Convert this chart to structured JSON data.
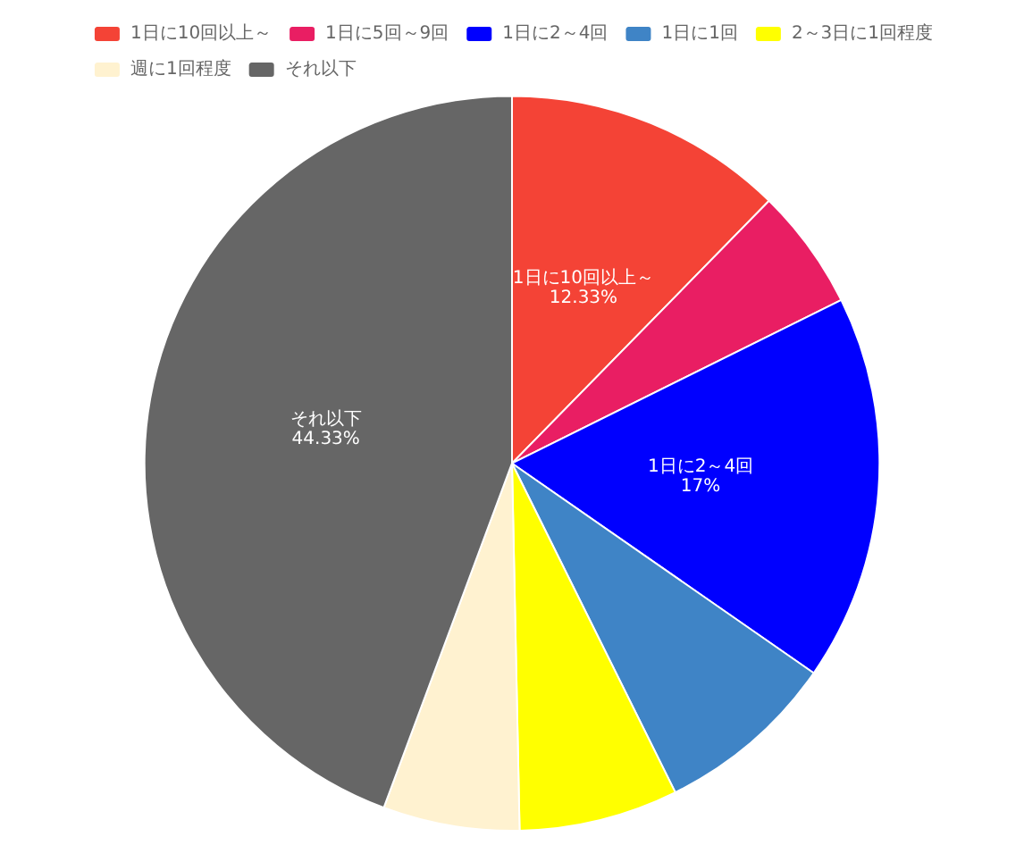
{
  "chart_data": {
    "type": "pie",
    "categories": [
      "1日に10回以上～",
      "1日に5回～9回",
      "1日に2～4回",
      "1日に1回",
      "2～3日に1回程度",
      "週に1回程度",
      "それ以下"
    ],
    "values": [
      12.33,
      5.34,
      17,
      8,
      7,
      6,
      44.33
    ],
    "colors": [
      "#f44336",
      "#e91e63",
      "#0000ff",
      "#3f84c6",
      "#ffff00",
      "#fff2d0",
      "#666666"
    ],
    "value_labels": [
      "12.33%",
      null,
      "17%",
      null,
      null,
      null,
      "44.33%"
    ],
    "legend": "top"
  }
}
